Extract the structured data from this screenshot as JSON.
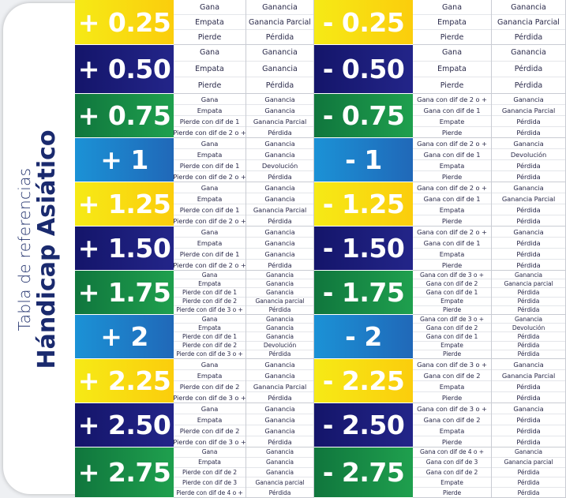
{
  "side": {
    "subtitle": "Tabla de referencias",
    "title": "Hándicap Asiático"
  },
  "rows": [
    {
      "color": "yellow",
      "density": "",
      "left": {
        "label": "+ 0.25",
        "c1": [
          "Gana",
          "Empata",
          "Pierde"
        ],
        "c2": [
          "Ganancia",
          "Ganancia Parcial",
          "Pérdida"
        ]
      },
      "right": {
        "label": "- 0.25",
        "c1": [
          "Gana",
          "Empata",
          "Pierde"
        ],
        "c2": [
          "Ganancia",
          "Ganancia Parcial",
          "Pérdida"
        ]
      }
    },
    {
      "color": "navy",
      "density": "",
      "left": {
        "label": "+ 0.50",
        "c1": [
          "Gana",
          "Empata",
          "Pierde"
        ],
        "c2": [
          "Ganancia",
          "Ganancia",
          "Pérdida"
        ]
      },
      "right": {
        "label": "- 0.50",
        "c1": [
          "Gana",
          "Empata",
          "Pierde"
        ],
        "c2": [
          "Ganancia",
          "Pérdida",
          "Pérdida"
        ]
      }
    },
    {
      "color": "green",
      "density": "med",
      "left": {
        "label": "+ 0.75",
        "c1": [
          "Gana",
          "Empata",
          "Pierde con dif de 1",
          "Pierde con dif de 2 o +"
        ],
        "c2": [
          "Ganancia",
          "Ganancia",
          "Ganancia Parcial",
          "Pérdida"
        ]
      },
      "right": {
        "label": "- 0.75",
        "c1": [
          "Gana con dif de 2 o +",
          "Gana con dif de 1",
          "Empate",
          "Pierde"
        ],
        "c2": [
          "Ganancia",
          "Ganancia Parcial",
          "Pérdida",
          "Pérdida"
        ]
      }
    },
    {
      "color": "blue",
      "density": "med",
      "left": {
        "label": "+ 1",
        "c1": [
          "Gana",
          "Empata",
          "Pierde con dif de 1",
          "Pierde con dif de 2 o +"
        ],
        "c2": [
          "Ganancia",
          "Ganancia",
          "Devolución",
          "Pérdida"
        ]
      },
      "right": {
        "label": "- 1",
        "c1": [
          "Gana con dif de 2 o +",
          "Gana con dif de 1",
          "Empata",
          "Pierde"
        ],
        "c2": [
          "Ganancia",
          "Devolución",
          "Pérdida",
          "Pérdida"
        ]
      }
    },
    {
      "color": "yellow",
      "density": "med",
      "left": {
        "label": "+ 1.25",
        "c1": [
          "Gana",
          "Empata",
          "Pierde con dif de 1",
          "Pierde con dif de 2 o +"
        ],
        "c2": [
          "Ganancia",
          "Ganancia",
          "Ganancia Parcial",
          "Pérdida"
        ]
      },
      "right": {
        "label": "- 1.25",
        "c1": [
          "Gana con dif de 2 o +",
          "Gana con dif de 1",
          "Empata",
          "Pierde"
        ],
        "c2": [
          "Ganancia",
          "Ganancia Parcial",
          "Pérdida",
          "Pérdida"
        ]
      }
    },
    {
      "color": "navy",
      "density": "med",
      "left": {
        "label": "+ 1.50",
        "c1": [
          "Gana",
          "Empata",
          "Pierde con dif de 1",
          "Pierde con dif de 2 o +"
        ],
        "c2": [
          "Ganancia",
          "Ganancia",
          "Ganancia",
          "Pérdida"
        ]
      },
      "right": {
        "label": "- 1.50",
        "c1": [
          "Gana con dif de 2 o +",
          "Gana con dif de 1",
          "Empata",
          "Pierde"
        ],
        "c2": [
          "Ganancia",
          "Pérdida",
          "Pérdida",
          "Pérdida"
        ]
      }
    },
    {
      "color": "green",
      "density": "dense",
      "left": {
        "label": "+ 1.75",
        "c1": [
          "Gana",
          "Empata",
          "Pierde con dif de 1",
          "Pierde con dif de 2",
          "Pierde con dif de 3 o +"
        ],
        "c2": [
          "Ganancia",
          "Ganancia",
          "Ganancia",
          "Ganancia parcial",
          "Pérdida"
        ]
      },
      "right": {
        "label": "- 1.75",
        "c1": [
          "Gana con dif de 3 o +",
          "Gana con dif de 2",
          "Gana con dif de 1",
          "Empate",
          "Pierde"
        ],
        "c2": [
          "Ganancia",
          "Ganancia parcial",
          "Pérdida",
          "Pérdida",
          "Pérdida"
        ]
      }
    },
    {
      "color": "blue",
      "density": "dense",
      "left": {
        "label": "+ 2",
        "c1": [
          "Gana",
          "Empata",
          "Pierde con dif de 1",
          "Pierde con dif de 2",
          "Pierde con dif de 3 o +"
        ],
        "c2": [
          "Ganancia",
          "Ganancia",
          "Ganancia",
          "Devolución",
          "Pérdida"
        ]
      },
      "right": {
        "label": "- 2",
        "c1": [
          "Gana con dif de 3 o +",
          "Gana con dif de 2",
          "Gana con dif de 1",
          "Empate",
          "Pierde"
        ],
        "c2": [
          "Ganancia",
          "Devolución",
          "Pérdida",
          "Pérdida",
          "Pérdida"
        ]
      }
    },
    {
      "color": "yellow",
      "density": "med",
      "left": {
        "label": "+ 2.25",
        "c1": [
          "Gana",
          "Empata",
          "Pierde con dif de 2",
          "Pierde con dif de 3 o +"
        ],
        "c2": [
          "Ganancia",
          "Ganancia",
          "Ganancia Parcial",
          "Pérdida"
        ]
      },
      "right": {
        "label": "- 2.25",
        "c1": [
          "Gana con dif de 3 o +",
          "Gana con dif de 2",
          "Empata",
          "Pierde"
        ],
        "c2": [
          "Ganancia",
          "Ganancia Parcial",
          "Pérdida",
          "Pérdida"
        ]
      }
    },
    {
      "color": "navy",
      "density": "med",
      "left": {
        "label": "+ 2.50",
        "c1": [
          "Gana",
          "Empata",
          "Pierde con dif de 2",
          "Pierde con dif de 3 o +"
        ],
        "c2": [
          "Ganancia",
          "Ganancia",
          "Ganancia",
          "Pérdida"
        ]
      },
      "right": {
        "label": "- 2.50",
        "c1": [
          "Gana con dif de 3 o +",
          "Gana con dif de 2",
          "Empata",
          "Pierde"
        ],
        "c2": [
          "Ganancia",
          "Pérdida",
          "Pérdida",
          "Pérdida"
        ]
      }
    },
    {
      "color": "green",
      "density": "dense",
      "left": {
        "label": "+ 2.75",
        "c1": [
          "Gana",
          "Empata",
          "Pierde con dif de 2",
          "Pierde con dif de 3",
          "Pierde con dif de 4 o +"
        ],
        "c2": [
          "Ganancia",
          "Ganancia",
          "Ganancia",
          "Ganancia parcial",
          "Pérdida"
        ]
      },
      "right": {
        "label": "- 2.75",
        "c1": [
          "Gana con dif de 4 o +",
          "Gana con dif de 3",
          "Gana con dif de 2",
          "Empate",
          "Pierde"
        ],
        "c2": [
          "Ganancia",
          "Ganancia parcial",
          "Pérdida",
          "Pérdida",
          "Pérdida"
        ]
      }
    }
  ]
}
